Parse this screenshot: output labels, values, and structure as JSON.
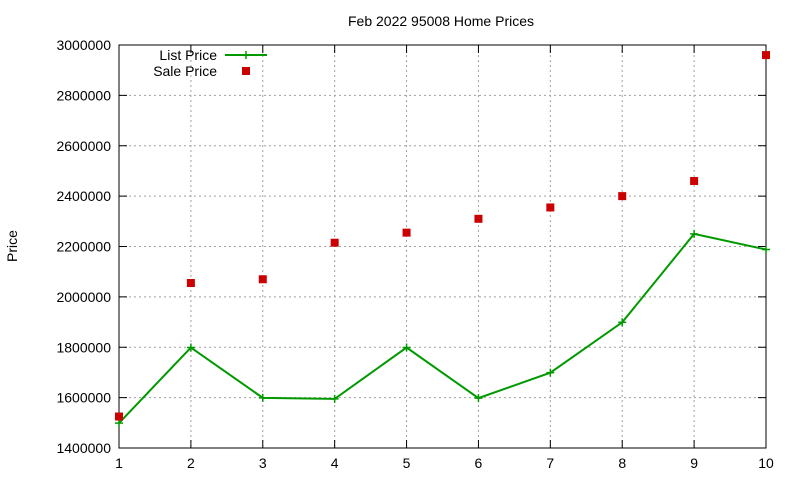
{
  "chart_data": {
    "type": "line",
    "title": "Feb 2022 95008 Home Prices",
    "xlabel": "",
    "ylabel": "Price",
    "x": [
      1,
      2,
      3,
      4,
      5,
      6,
      7,
      8,
      9,
      10
    ],
    "xlim": [
      1,
      10
    ],
    "ylim": [
      1400000,
      3000000
    ],
    "xticks": [
      "1",
      "2",
      "3",
      "4",
      "5",
      "6",
      "7",
      "8",
      "9",
      "10"
    ],
    "yticks": [
      "1400000",
      "1600000",
      "1800000",
      "2000000",
      "2200000",
      "2400000",
      "2600000",
      "2800000",
      "3000000"
    ],
    "grid": true,
    "legend_position": "top-left",
    "series": [
      {
        "name": "List Price",
        "style": "line-with-plus-markers",
        "color": "#009900",
        "values": [
          1499000,
          1799000,
          1599000,
          1595000,
          1799000,
          1598000,
          1699000,
          1899000,
          2250000,
          2188000
        ]
      },
      {
        "name": "Sale Price",
        "style": "square-markers",
        "color": "#cc0000",
        "values": [
          1525000,
          2055000,
          2070000,
          2215000,
          2255000,
          2310000,
          2355000,
          2400000,
          2460000,
          2960000
        ]
      }
    ]
  }
}
